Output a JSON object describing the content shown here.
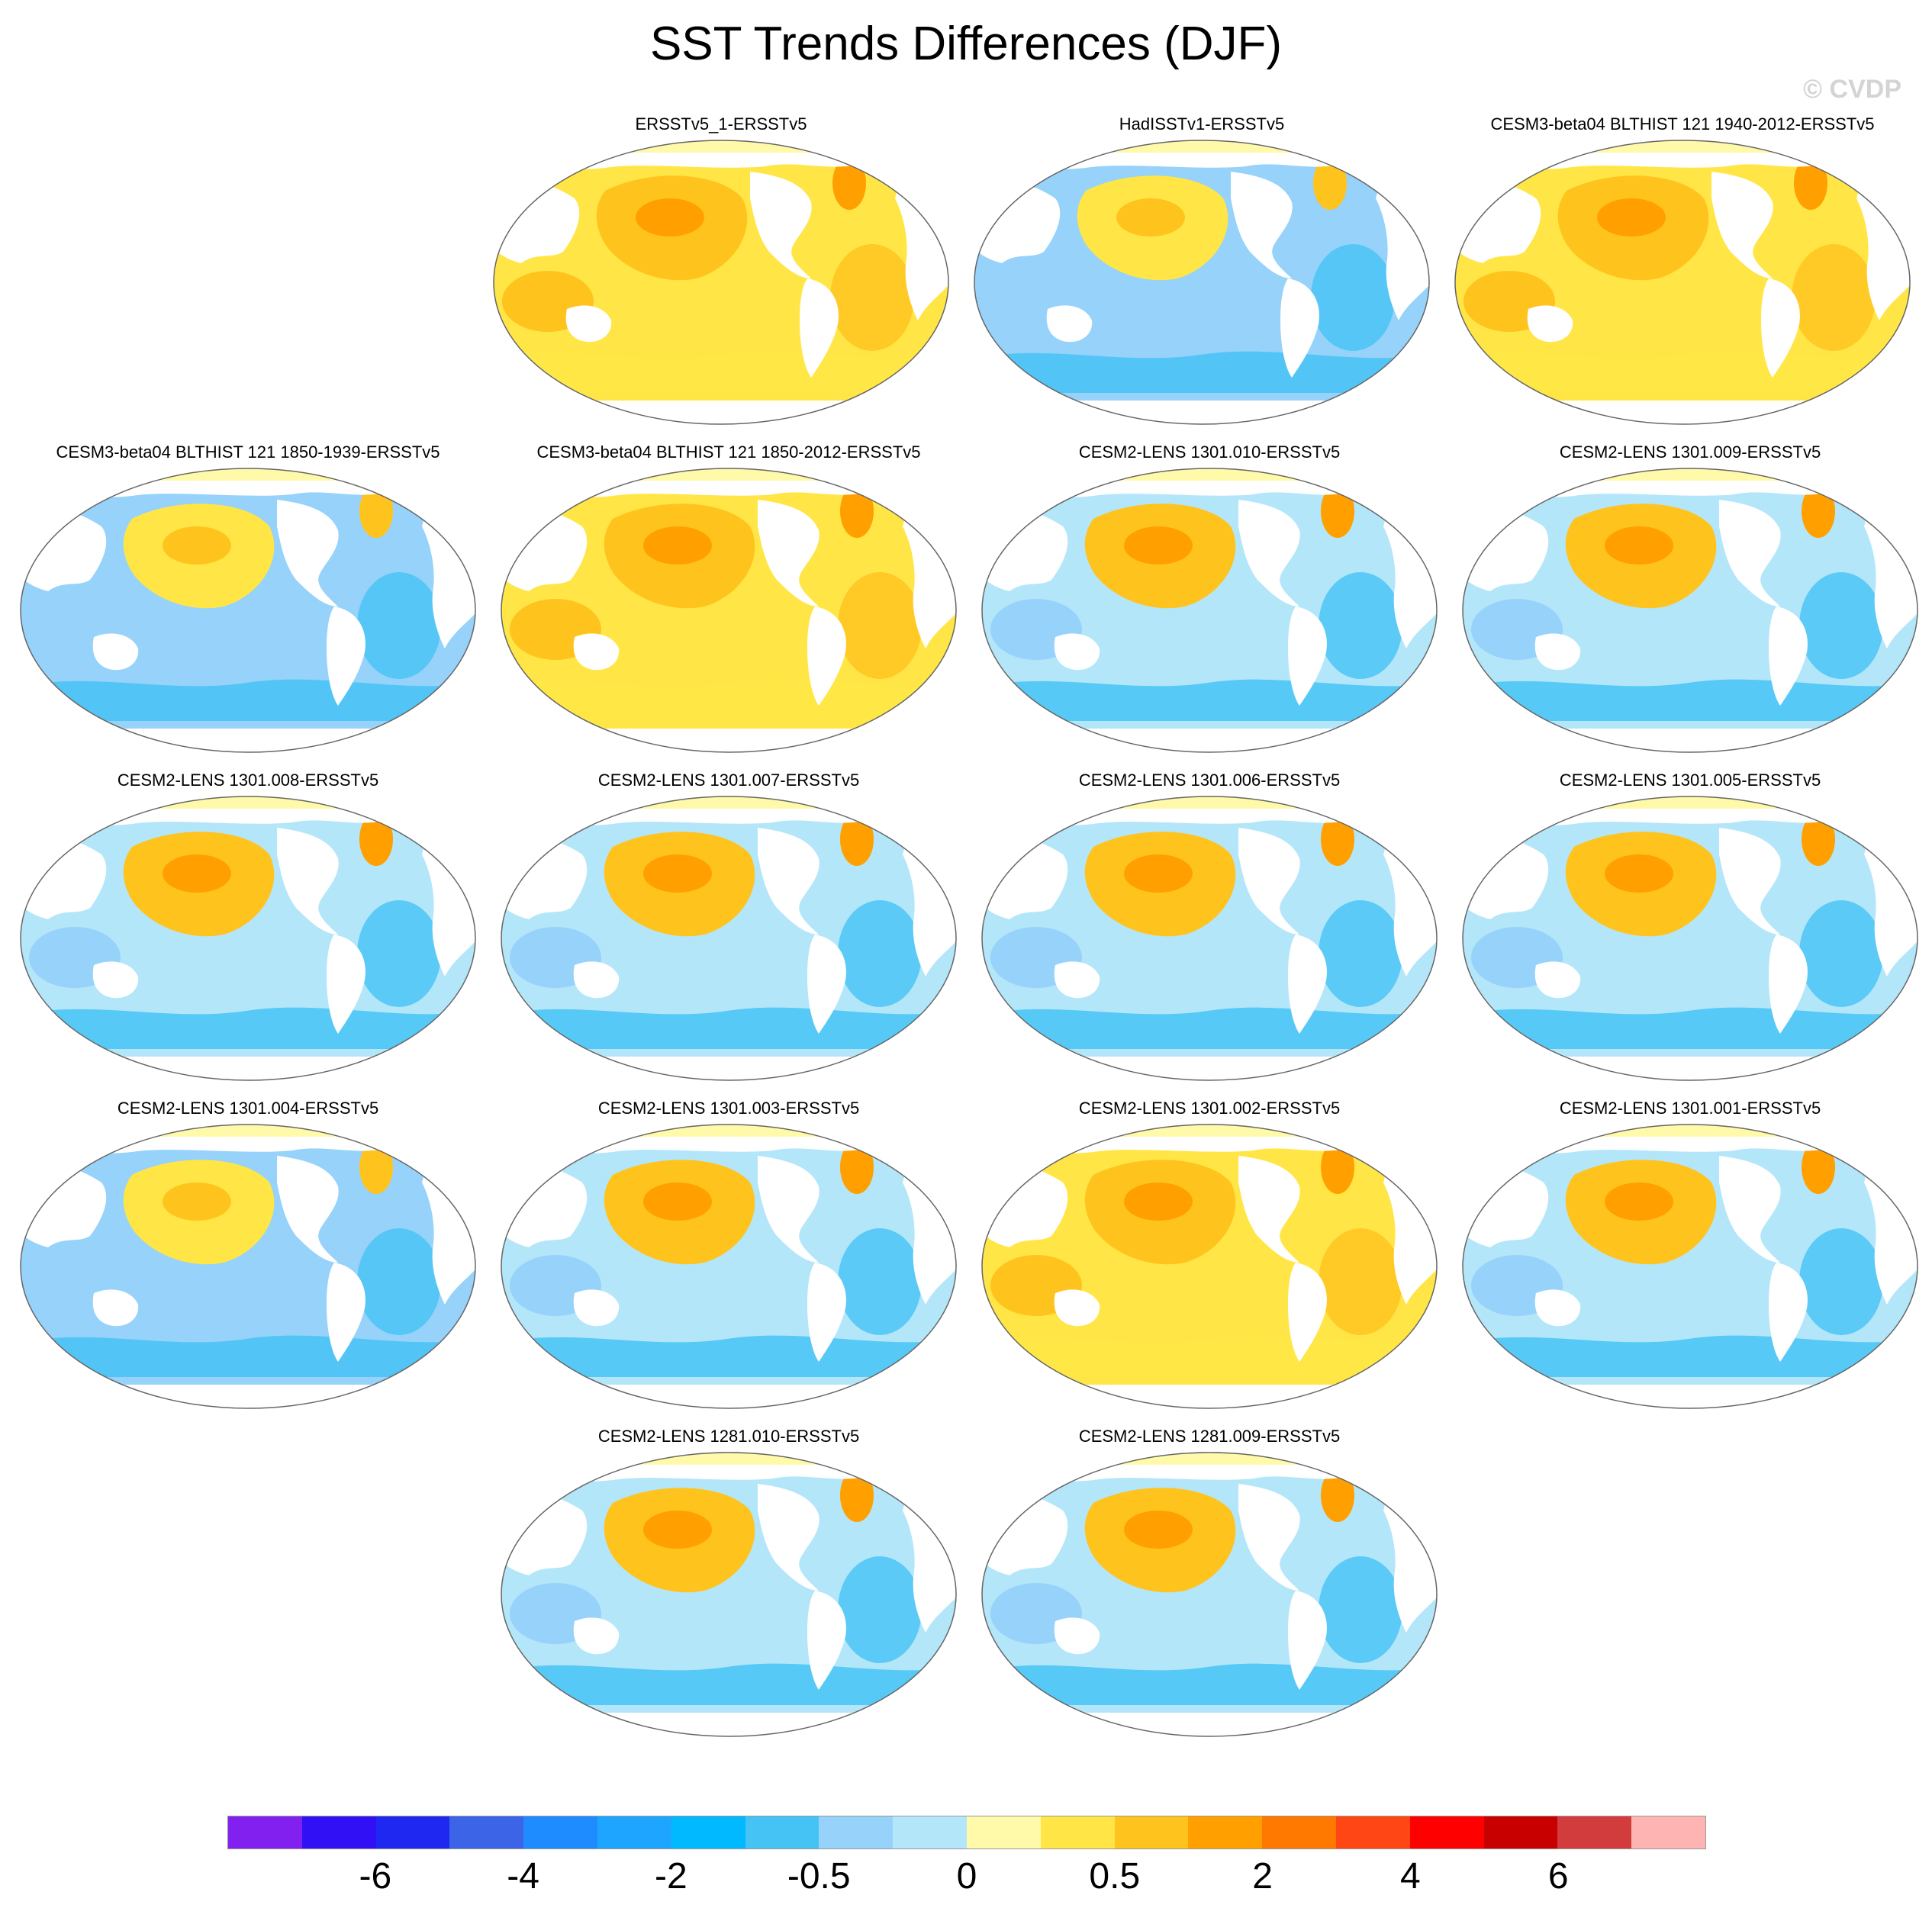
{
  "title": "SST Trends Differences (DJF)",
  "watermark": "© CVDP",
  "panels": [
    {
      "label": "ERSSTv5_1-ERSSTv5",
      "pattern": "warm"
    },
    {
      "label": "HadISSTv1-ERSSTv5",
      "pattern": "cool"
    },
    {
      "label": "CESM3-beta04 BLTHIST 121 1940-2012-ERSSTv5",
      "pattern": "warm"
    },
    {
      "label": "CESM3-beta04 BLTHIST 121 1850-1939-ERSSTv5",
      "pattern": "cool"
    },
    {
      "label": "CESM3-beta04 BLTHIST 121 1850-2012-ERSSTv5",
      "pattern": "warm"
    },
    {
      "label": "CESM2-LENS 1301.010-ERSSTv5",
      "pattern": "mixed"
    },
    {
      "label": "CESM2-LENS 1301.009-ERSSTv5",
      "pattern": "mixed"
    },
    {
      "label": "CESM2-LENS 1301.008-ERSSTv5",
      "pattern": "mixed"
    },
    {
      "label": "CESM2-LENS 1301.007-ERSSTv5",
      "pattern": "mixed"
    },
    {
      "label": "CESM2-LENS 1301.006-ERSSTv5",
      "pattern": "mixed"
    },
    {
      "label": "CESM2-LENS 1301.005-ERSSTv5",
      "pattern": "mixed"
    },
    {
      "label": "CESM2-LENS 1301.004-ERSSTv5",
      "pattern": "cool"
    },
    {
      "label": "CESM2-LENS 1301.003-ERSSTv5",
      "pattern": "mixed"
    },
    {
      "label": "CESM2-LENS 1301.002-ERSSTv5",
      "pattern": "warm"
    },
    {
      "label": "CESM2-LENS 1301.001-ERSSTv5",
      "pattern": "mixed"
    },
    {
      "label": "CESM2-LENS 1281.010-ERSSTv5",
      "pattern": "mixed"
    },
    {
      "label": "CESM2-LENS 1281.009-ERSSTv5",
      "pattern": "mixed"
    }
  ],
  "colorbar": {
    "colors": [
      "#8220f0",
      "#3210f5",
      "#1e28f0",
      "#3c64e6",
      "#1e8cff",
      "#1ea5ff",
      "#00b9ff",
      "#46c3f5",
      "#96d2fa",
      "#b4e6fa",
      "#fffaaa",
      "#ffe646",
      "#ffc31e",
      "#ffa000",
      "#ff7800",
      "#ff4614",
      "#ff0000",
      "#c80000",
      "#d23c3c",
      "#ffb4b4"
    ],
    "labels": [
      "-6",
      "-4",
      "-2",
      "-0.5",
      "0",
      "0.5",
      "2",
      "4",
      "6"
    ]
  },
  "field_colors": {
    "land": "#ffffff",
    "strong_warm": "#ffa000",
    "warm": "#ffc31e",
    "weak_warm": "#ffe646",
    "slight_warm": "#fffaaa",
    "slight_cool": "#b4e6fa",
    "cool": "#96d2fa",
    "strong_cool": "#46c3f5",
    "coast": "#666666"
  }
}
